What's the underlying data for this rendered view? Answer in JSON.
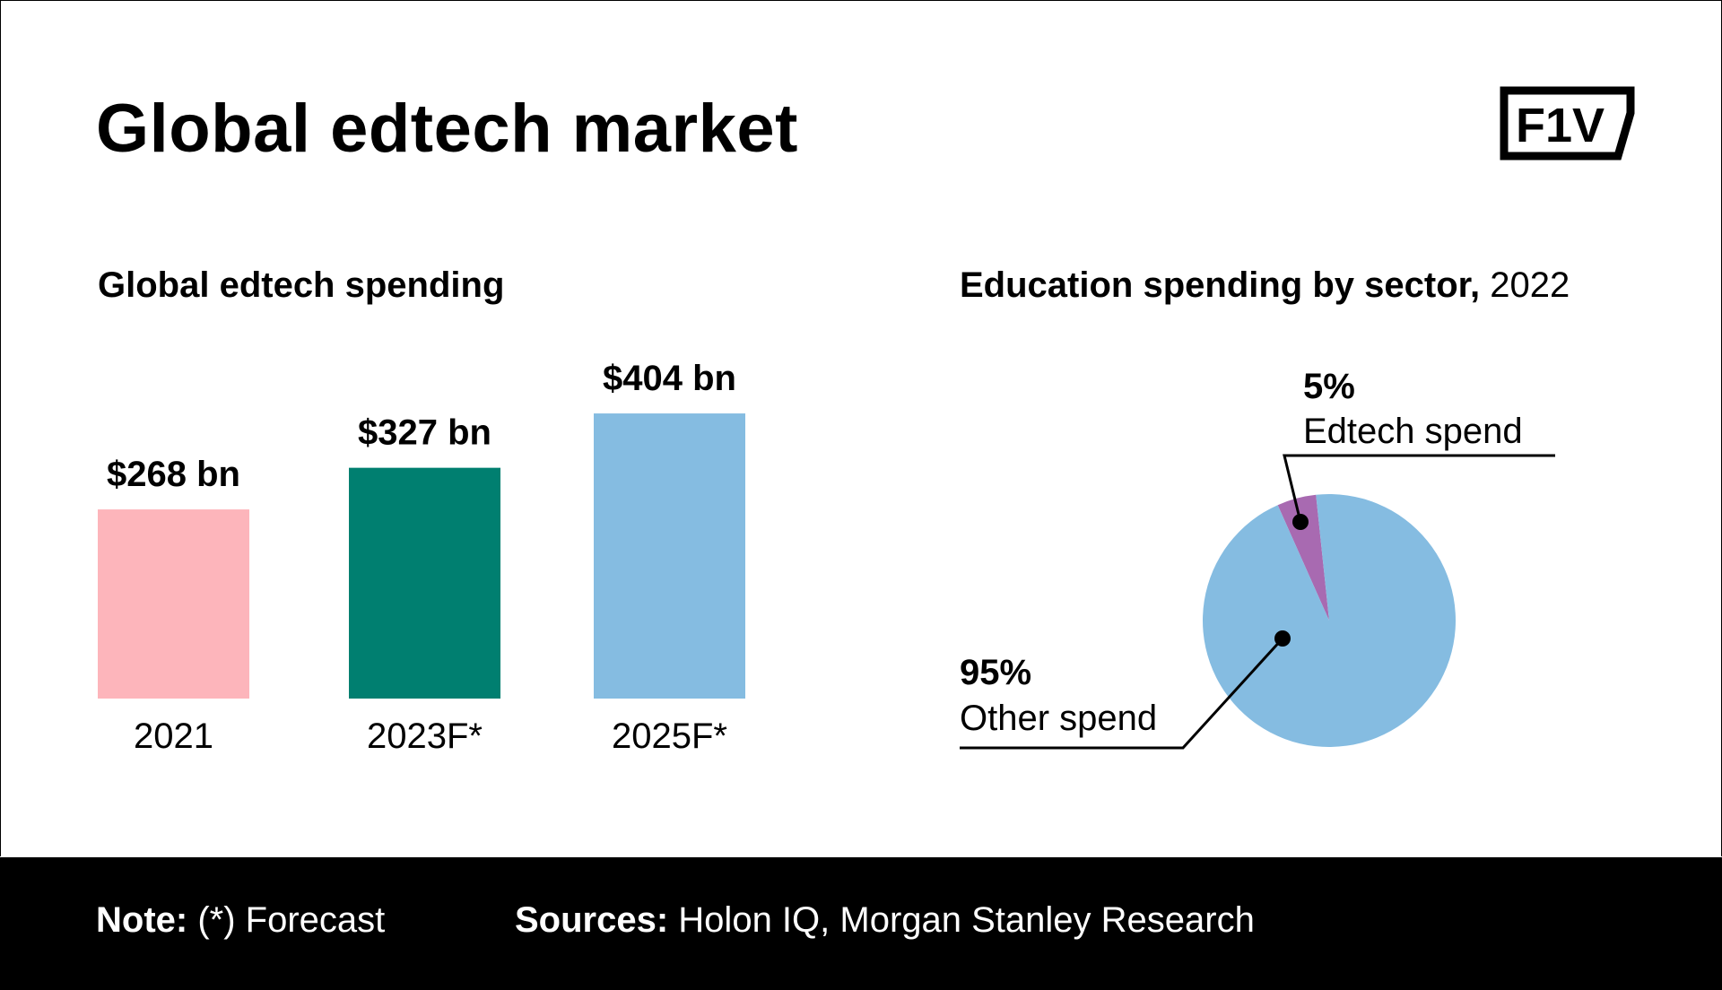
{
  "title": "Global edtech market",
  "logo_text": "F1V",
  "footer": {
    "note_label": "Note:",
    "note_text": "(*) Forecast",
    "sources_label": "Sources:",
    "sources_text": "Holon IQ, Morgan Stanley Research"
  },
  "chart_data": [
    {
      "type": "bar",
      "title": "Global edtech spending",
      "categories": [
        "2021",
        "2023F*",
        "2025F*"
      ],
      "values": [
        268,
        327,
        404
      ],
      "data_labels": [
        "$268 bn",
        "$327 bn",
        "$404 bn"
      ],
      "unit": "$ bn",
      "colors": [
        "#FDB5BB",
        "#007F70",
        "#85BCE1"
      ],
      "grid": false
    },
    {
      "type": "pie",
      "title": "Education spending by sector,",
      "title_suffix": "2022",
      "slices": [
        {
          "label": "Edtech spend",
          "value": 5,
          "pct_label": "5%",
          "color": "#A86AB1"
        },
        {
          "label": "Other spend",
          "value": 95,
          "pct_label": "95%",
          "color": "#85BCE1"
        }
      ]
    }
  ]
}
